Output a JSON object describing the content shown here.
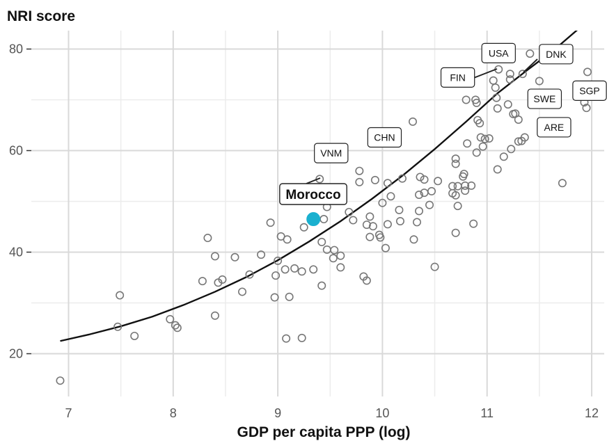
{
  "chart_data": {
    "type": "scatter",
    "ylabel": "NRI score",
    "xlabel": "GDP per capita PPP (log)",
    "xlim": [
      6.8,
      12.15
    ],
    "ylim": [
      11,
      82
    ],
    "x_ticks": [
      7,
      8,
      9,
      10,
      11,
      12
    ],
    "y_ticks": [
      20,
      40,
      60,
      80
    ],
    "x_tick_labels": [
      "7",
      "8",
      "9",
      "10",
      "11",
      "12"
    ],
    "y_tick_labels": [
      "20",
      "40",
      "60",
      "80"
    ],
    "grid": true,
    "points": [
      [
        6.92,
        14.7
      ],
      [
        7.47,
        25.3
      ],
      [
        7.49,
        31.5
      ],
      [
        7.63,
        23.5
      ],
      [
        7.97,
        26.8
      ],
      [
        8.02,
        25.6
      ],
      [
        8.04,
        25.1
      ],
      [
        8.28,
        34.3
      ],
      [
        8.33,
        42.8
      ],
      [
        8.4,
        39.2
      ],
      [
        8.4,
        27.5
      ],
      [
        8.43,
        34.0
      ],
      [
        8.47,
        34.6
      ],
      [
        8.59,
        39.0
      ],
      [
        8.66,
        32.2
      ],
      [
        8.73,
        35.6
      ],
      [
        8.84,
        39.5
      ],
      [
        8.93,
        45.8
      ],
      [
        8.97,
        31.1
      ],
      [
        8.98,
        35.4
      ],
      [
        9.0,
        38.3
      ],
      [
        9.03,
        43.1
      ],
      [
        9.07,
        36.6
      ],
      [
        9.08,
        23.0
      ],
      [
        9.09,
        42.5
      ],
      [
        9.11,
        31.2
      ],
      [
        9.16,
        36.8
      ],
      [
        9.23,
        36.2
      ],
      [
        9.23,
        23.1
      ],
      [
        9.25,
        44.9
      ],
      [
        9.34,
        36.6
      ],
      [
        9.4,
        54.4
      ],
      [
        9.42,
        42.0
      ],
      [
        9.42,
        33.4
      ],
      [
        9.44,
        46.5
      ],
      [
        9.47,
        48.9
      ],
      [
        9.47,
        40.5
      ],
      [
        9.53,
        38.8
      ],
      [
        9.54,
        40.4
      ],
      [
        9.6,
        37.0
      ],
      [
        9.6,
        39.3
      ],
      [
        9.68,
        47.9
      ],
      [
        9.72,
        46.3
      ],
      [
        9.78,
        56.0
      ],
      [
        9.78,
        53.8
      ],
      [
        9.82,
        35.2
      ],
      [
        9.85,
        34.4
      ],
      [
        9.85,
        45.4
      ],
      [
        9.88,
        47.0
      ],
      [
        9.91,
        45.1
      ],
      [
        9.88,
        43.0
      ],
      [
        9.93,
        54.2
      ],
      [
        9.97,
        43.4
      ],
      [
        9.98,
        42.9
      ],
      [
        10.0,
        49.7
      ],
      [
        10.03,
        40.8
      ],
      [
        10.05,
        53.6
      ],
      [
        10.05,
        45.5
      ],
      [
        10.08,
        51.0
      ],
      [
        10.16,
        48.3
      ],
      [
        10.17,
        46.1
      ],
      [
        10.19,
        54.5
      ],
      [
        10.29,
        65.7
      ],
      [
        10.3,
        42.5
      ],
      [
        10.33,
        45.9
      ],
      [
        10.35,
        51.3
      ],
      [
        10.35,
        48.1
      ],
      [
        10.36,
        54.8
      ],
      [
        10.4,
        51.7
      ],
      [
        10.4,
        54.3
      ],
      [
        10.45,
        49.3
      ],
      [
        10.47,
        52.0
      ],
      [
        10.5,
        37.1
      ],
      [
        10.53,
        54.0
      ],
      [
        10.67,
        53.0
      ],
      [
        10.67,
        51.6
      ],
      [
        10.7,
        57.4
      ],
      [
        10.7,
        58.4
      ],
      [
        10.7,
        51.2
      ],
      [
        10.7,
        43.8
      ],
      [
        10.72,
        49.1
      ],
      [
        10.72,
        53.0
      ],
      [
        10.77,
        54.9
      ],
      [
        10.78,
        55.4
      ],
      [
        10.79,
        53.1
      ],
      [
        10.79,
        52.1
      ],
      [
        10.8,
        70.0
      ],
      [
        10.81,
        61.4
      ],
      [
        10.85,
        53.1
      ],
      [
        10.87,
        45.6
      ],
      [
        10.89,
        70.0
      ],
      [
        10.9,
        59.6
      ],
      [
        10.9,
        69.4
      ],
      [
        10.91,
        66.0
      ],
      [
        10.93,
        65.4
      ],
      [
        10.94,
        62.6
      ],
      [
        10.96,
        60.8
      ],
      [
        10.98,
        62.3
      ],
      [
        11.02,
        62.4
      ],
      [
        11.06,
        73.8
      ],
      [
        11.08,
        72.4
      ],
      [
        11.09,
        70.4
      ],
      [
        11.1,
        68.3
      ],
      [
        11.1,
        56.3
      ],
      [
        11.11,
        76.0
      ],
      [
        11.16,
        58.8
      ],
      [
        11.2,
        69.1
      ],
      [
        11.22,
        75.1
      ],
      [
        11.22,
        74.0
      ],
      [
        11.23,
        60.3
      ],
      [
        11.25,
        67.2
      ],
      [
        11.27,
        67.3
      ],
      [
        11.3,
        61.8
      ],
      [
        11.3,
        66.1
      ],
      [
        11.33,
        61.9
      ],
      [
        11.34,
        75.1
      ],
      [
        11.36,
        62.6
      ],
      [
        11.41,
        79.1
      ],
      [
        11.5,
        73.7
      ],
      [
        11.58,
        69.9
      ],
      [
        11.72,
        53.6
      ],
      [
        11.93,
        69.5
      ],
      [
        11.95,
        68.4
      ],
      [
        11.96,
        75.5
      ]
    ],
    "highlight": {
      "label": "Morocco",
      "x": 9.34,
      "y": 46.5,
      "color": "#1ab0cf"
    },
    "labels": [
      {
        "text": "USA",
        "x": 11.11,
        "y": 79.2
      },
      {
        "text": "DNK",
        "x": 11.66,
        "y": 79.0
      },
      {
        "text": "FIN",
        "x": 10.72,
        "y": 74.4
      },
      {
        "text": "SWE",
        "x": 11.55,
        "y": 70.2
      },
      {
        "text": "SGP",
        "x": 11.98,
        "y": 71.8
      },
      {
        "text": "ARE",
        "x": 11.64,
        "y": 64.6
      },
      {
        "text": "CHN",
        "x": 10.02,
        "y": 62.6
      },
      {
        "text": "VNM",
        "x": 9.51,
        "y": 59.5
      }
    ],
    "trend_line": [
      [
        6.92,
        22.5
      ],
      [
        7.2,
        23.8
      ],
      [
        7.5,
        25.4
      ],
      [
        7.8,
        27.3
      ],
      [
        8.1,
        29.6
      ],
      [
        8.4,
        32.2
      ],
      [
        8.7,
        35.1
      ],
      [
        9.0,
        38.4
      ],
      [
        9.3,
        42.1
      ],
      [
        9.6,
        46.1
      ],
      [
        9.9,
        50.5
      ],
      [
        10.2,
        55.2
      ],
      [
        10.5,
        60.3
      ],
      [
        10.8,
        65.7
      ],
      [
        11.1,
        71.3
      ],
      [
        11.4,
        76.1
      ],
      [
        11.65,
        80.0
      ],
      [
        11.96,
        85.5
      ]
    ]
  }
}
